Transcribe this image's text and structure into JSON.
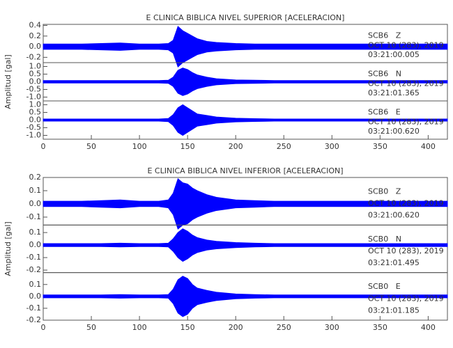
{
  "chart_data": [
    {
      "type": "area",
      "title": "E CLINICA BIBLICA NIVEL SUPERIOR [ACELERACION]",
      "ylabel": "Amplitud [gal]",
      "xlim": [
        0,
        420
      ],
      "xticks": [
        0,
        50,
        100,
        150,
        200,
        250,
        300,
        350,
        400
      ],
      "x": [
        0,
        20,
        40,
        60,
        80,
        100,
        120,
        130,
        135,
        140,
        145,
        150,
        155,
        160,
        170,
        180,
        200,
        220,
        240,
        260,
        280,
        300,
        320,
        340,
        360,
        380,
        400,
        420
      ],
      "traces": [
        {
          "name": "SCB6   Z",
          "date": "OCT 10 (283), 2019",
          "time": "03:21:00.005",
          "color": "#0000ff",
          "ylim": [
            -0.3,
            0.42
          ],
          "yticks": [
            -0.2,
            {
              "value": 0,
              "label": "0.0"
            },
            0.2,
            0.4
          ],
          "values": [
            0.05,
            0.05,
            0.05,
            0.06,
            0.07,
            0.05,
            0.05,
            0.06,
            0.12,
            0.38,
            0.3,
            0.25,
            0.2,
            0.15,
            0.1,
            0.08,
            0.06,
            0.05,
            0.05,
            0.05,
            0.05,
            0.05,
            0.05,
            0.05,
            0.05,
            0.05,
            0.05,
            0.05
          ]
        },
        {
          "name": "SCB6   N",
          "date": "OCT 10 (283), 2019",
          "time": "03:21:01.365",
          "color": "#0000ff",
          "ylim": [
            -1.25,
            1.25
          ],
          "yticks": [
            {
              "value": -1,
              "label": "-1.0"
            },
            -0.5,
            {
              "value": 0,
              "label": "0.0"
            },
            0.5,
            {
              "value": 1,
              "label": "1.0"
            }
          ],
          "values": [
            0.08,
            0.08,
            0.08,
            0.08,
            0.08,
            0.08,
            0.08,
            0.1,
            0.3,
            0.75,
            0.9,
            0.8,
            0.6,
            0.45,
            0.3,
            0.2,
            0.12,
            0.1,
            0.08,
            0.08,
            0.08,
            0.08,
            0.08,
            0.08,
            0.08,
            0.08,
            0.08,
            0.08
          ]
        },
        {
          "name": "SCB6   E",
          "date": "OCT 10 (283), 2019",
          "time": "03:21:00.620",
          "color": "#0000ff",
          "ylim": [
            -1.25,
            1.25
          ],
          "yticks": [
            {
              "value": -1,
              "label": "-1.0"
            },
            -0.5,
            {
              "value": 0,
              "label": "0.0"
            },
            0.5,
            {
              "value": 1,
              "label": "1.0"
            }
          ],
          "values": [
            0.07,
            0.07,
            0.07,
            0.07,
            0.07,
            0.07,
            0.07,
            0.1,
            0.35,
            0.8,
            1.0,
            0.8,
            0.6,
            0.4,
            0.3,
            0.2,
            0.12,
            0.09,
            0.07,
            0.07,
            0.07,
            0.07,
            0.07,
            0.07,
            0.07,
            0.07,
            0.07,
            0.07
          ]
        }
      ]
    },
    {
      "type": "area",
      "title": "E CLINICA BIBLICA NIVEL INFERIOR [ACELERACION]",
      "ylabel": "Amplitud [gal]",
      "xlim": [
        0,
        420
      ],
      "xticks": [
        0,
        50,
        100,
        150,
        200,
        250,
        300,
        350,
        400
      ],
      "x": [
        0,
        20,
        40,
        60,
        80,
        100,
        120,
        130,
        135,
        140,
        145,
        150,
        155,
        160,
        170,
        180,
        200,
        220,
        240,
        260,
        280,
        300,
        320,
        340,
        360,
        380,
        400,
        420
      ],
      "traces": [
        {
          "name": "SCB0   Z",
          "date": "OCT 10 (283), 2019",
          "time": "03:21:00.620",
          "color": "#0000ff",
          "ylim": [
            -0.16,
            0.2
          ],
          "yticks": [
            -0.1,
            {
              "value": 0,
              "label": "0.0"
            },
            0.1,
            0.2
          ],
          "values": [
            0.02,
            0.02,
            0.02,
            0.025,
            0.03,
            0.02,
            0.02,
            0.03,
            0.08,
            0.19,
            0.16,
            0.15,
            0.12,
            0.1,
            0.07,
            0.05,
            0.03,
            0.025,
            0.02,
            0.02,
            0.02,
            0.02,
            0.02,
            0.02,
            0.02,
            0.02,
            0.02,
            0.02
          ]
        },
        {
          "name": "SCB0   N",
          "date": "OCT 10 (283), 2019",
          "time": "03:21:01.495",
          "color": "#0000ff",
          "ylim": [
            -0.22,
            0.16
          ],
          "yticks": [
            -0.2,
            -0.1,
            {
              "value": 0,
              "label": "0.0"
            },
            0.1
          ],
          "values": [
            0.012,
            0.012,
            0.012,
            0.012,
            0.015,
            0.012,
            0.012,
            0.015,
            0.05,
            0.1,
            0.13,
            0.11,
            0.08,
            0.06,
            0.04,
            0.03,
            0.02,
            0.015,
            0.012,
            0.012,
            0.012,
            0.012,
            0.012,
            0.012,
            0.012,
            0.012,
            0.012,
            0.012
          ]
        },
        {
          "name": "SCB0   E",
          "date": "OCT 10 (283), 2019",
          "time": "03:21:01.185",
          "color": "#0000ff",
          "ylim": [
            -0.2,
            0.2
          ],
          "yticks": [
            -0.2,
            -0.1,
            {
              "value": 0,
              "label": "0.0"
            },
            0.1
          ],
          "values": [
            0.012,
            0.012,
            0.012,
            0.012,
            0.015,
            0.012,
            0.012,
            0.015,
            0.06,
            0.14,
            0.17,
            0.15,
            0.1,
            0.07,
            0.05,
            0.035,
            0.02,
            0.015,
            0.012,
            0.012,
            0.012,
            0.012,
            0.012,
            0.012,
            0.012,
            0.012,
            0.012,
            0.012
          ]
        }
      ]
    }
  ]
}
